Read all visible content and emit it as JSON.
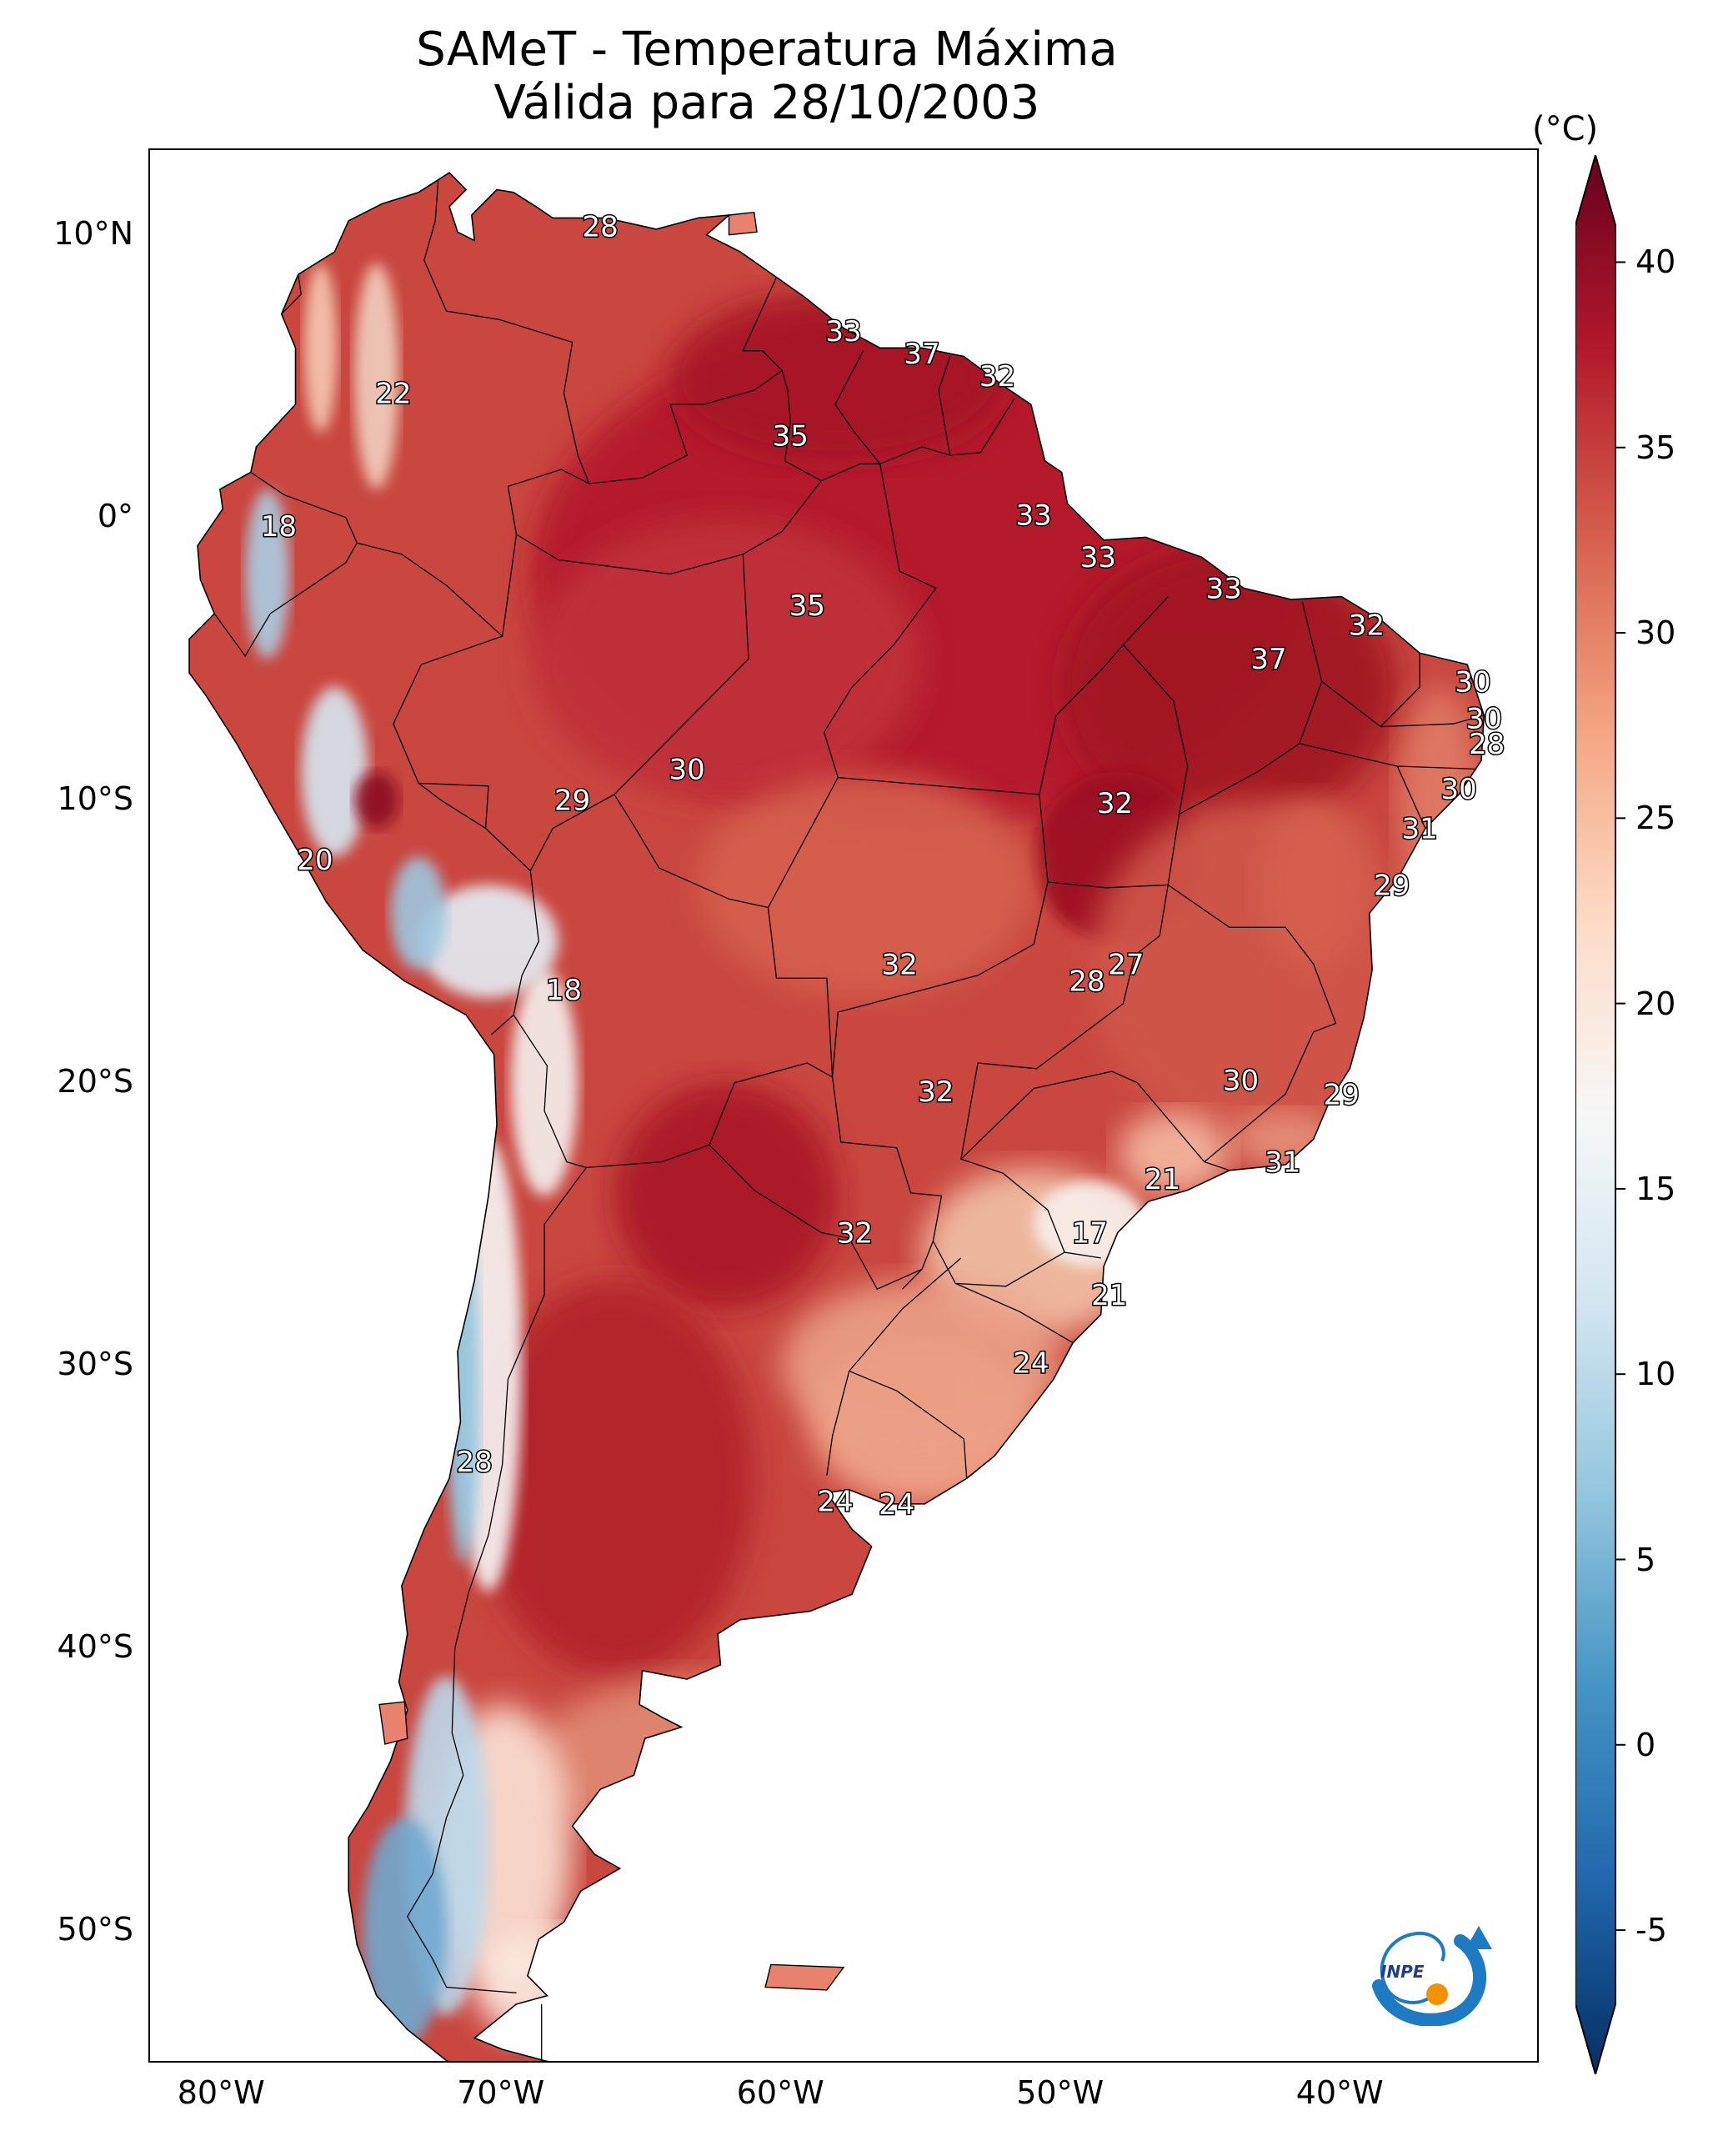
{
  "title": {
    "line1": "SAMeT - Temperatura Máxima",
    "line2": "Válida para 28/10/2003"
  },
  "colorbar": {
    "unit": "(°C)",
    "ticks": [
      "40",
      "35",
      "30",
      "25",
      "20",
      "15",
      "10",
      "5",
      "0",
      "-5"
    ],
    "min": -7,
    "max": 41,
    "colors": [
      "#053061",
      "#2166ac",
      "#4393c3",
      "#92c5de",
      "#d1e5f0",
      "#f7f7f7",
      "#fddbc7",
      "#f4a582",
      "#d6604d",
      "#b2182b",
      "#67001f"
    ]
  },
  "axes": {
    "lat_labels": [
      "10°N",
      "0°",
      "10°S",
      "20°S",
      "30°S",
      "40°S",
      "50°S"
    ],
    "lon_labels": [
      "80°W",
      "70°W",
      "60°W",
      "50°W",
      "40°W"
    ]
  },
  "map_labels": [
    {
      "text": "28",
      "lon": -66.5,
      "lat": 10.3
    },
    {
      "text": "33",
      "lon": -57.8,
      "lat": 6.6
    },
    {
      "text": "37",
      "lon": -55.0,
      "lat": 5.8
    },
    {
      "text": "32",
      "lon": -52.3,
      "lat": 5.0
    },
    {
      "text": "22",
      "lon": -73.9,
      "lat": 4.4
    },
    {
      "text": "35",
      "lon": -59.7,
      "lat": 2.9
    },
    {
      "text": "33",
      "lon": -51.0,
      "lat": 0.1
    },
    {
      "text": "18",
      "lon": -78.0,
      "lat": -0.3
    },
    {
      "text": "33",
      "lon": -48.7,
      "lat": -1.4
    },
    {
      "text": "33",
      "lon": -44.2,
      "lat": -2.5
    },
    {
      "text": "35",
      "lon": -59.1,
      "lat": -3.1
    },
    {
      "text": "32",
      "lon": -39.1,
      "lat": -3.8
    },
    {
      "text": "37",
      "lon": -42.6,
      "lat": -5.0
    },
    {
      "text": "30",
      "lon": -35.3,
      "lat": -5.8
    },
    {
      "text": "30",
      "lon": -34.9,
      "lat": -7.1
    },
    {
      "text": "28",
      "lon": -34.8,
      "lat": -8.0
    },
    {
      "text": "30",
      "lon": -63.4,
      "lat": -8.9
    },
    {
      "text": "30",
      "lon": -35.8,
      "lat": -9.6
    },
    {
      "text": "29",
      "lon": -67.5,
      "lat": -10.0
    },
    {
      "text": "32",
      "lon": -48.1,
      "lat": -10.1
    },
    {
      "text": "31",
      "lon": -37.2,
      "lat": -11.0
    },
    {
      "text": "20",
      "lon": -76.7,
      "lat": -12.1
    },
    {
      "text": "29",
      "lon": -38.2,
      "lat": -13.0
    },
    {
      "text": "27",
      "lon": -47.7,
      "lat": -15.8
    },
    {
      "text": "32",
      "lon": -55.8,
      "lat": -15.8
    },
    {
      "text": "28",
      "lon": -49.1,
      "lat": -16.4
    },
    {
      "text": "18",
      "lon": -67.8,
      "lat": -16.7
    },
    {
      "text": "30",
      "lon": -43.6,
      "lat": -19.9
    },
    {
      "text": "29",
      "lon": -40.0,
      "lat": -20.4
    },
    {
      "text": "32",
      "lon": -54.5,
      "lat": -20.3
    },
    {
      "text": "31",
      "lon": -42.1,
      "lat": -22.8
    },
    {
      "text": "21",
      "lon": -46.4,
      "lat": -23.4
    },
    {
      "text": "32",
      "lon": -57.4,
      "lat": -25.3
    },
    {
      "text": "17",
      "lon": -49.0,
      "lat": -25.3
    },
    {
      "text": "21",
      "lon": -48.3,
      "lat": -27.5
    },
    {
      "text": "24",
      "lon": -51.1,
      "lat": -29.9
    },
    {
      "text": "28",
      "lon": -71.0,
      "lat": -33.4
    },
    {
      "text": "24",
      "lon": -58.1,
      "lat": -34.8
    },
    {
      "text": "24",
      "lon": -55.9,
      "lat": -34.9
    }
  ],
  "logo": {
    "text": "INPE"
  }
}
